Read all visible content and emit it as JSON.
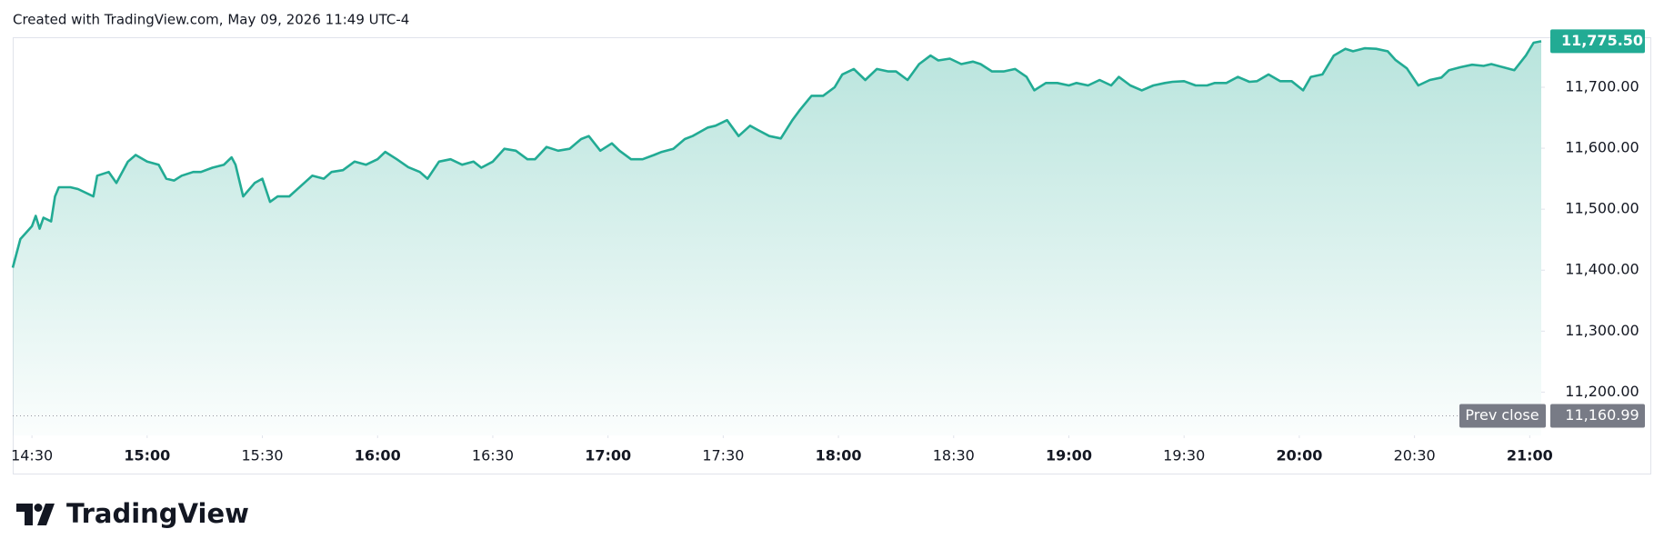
{
  "header": {
    "text": "Created with TradingView.com, May 09, 2026 11:49 UTC-4"
  },
  "brand": {
    "text": "TradingView"
  },
  "chart_data": {
    "type": "area",
    "color": "#22ab94",
    "x": [
      "14:25",
      "14:27",
      "14:30",
      "14:31",
      "14:32",
      "14:33",
      "14:35",
      "14:36",
      "14:37",
      "14:40",
      "14:42",
      "14:46",
      "14:47",
      "14:50",
      "14:52",
      "14:55",
      "14:57",
      "15:00",
      "15:03",
      "15:05",
      "15:07",
      "15:09",
      "15:12",
      "15:14",
      "15:17",
      "15:20",
      "15:22",
      "15:23",
      "15:25",
      "15:28",
      "15:30",
      "15:32",
      "15:34",
      "15:37",
      "15:40",
      "15:43",
      "15:46",
      "15:48",
      "15:51",
      "15:54",
      "15:57",
      "16:00",
      "16:02",
      "16:05",
      "16:08",
      "16:11",
      "16:13",
      "16:16",
      "16:19",
      "16:22",
      "16:25",
      "16:27",
      "16:30",
      "16:33",
      "16:36",
      "16:39",
      "16:41",
      "16:44",
      "16:47",
      "16:50",
      "16:53",
      "16:55",
      "16:58",
      "17:01",
      "17:03",
      "17:06",
      "17:09",
      "17:12",
      "17:14",
      "17:17",
      "17:20",
      "17:22",
      "17:26",
      "17:28",
      "17:31",
      "17:34",
      "17:37",
      "17:39",
      "17:42",
      "17:45",
      "17:48",
      "17:50",
      "17:53",
      "17:56",
      "17:59",
      "18:01",
      "18:04",
      "18:07",
      "18:10",
      "18:13",
      "18:15",
      "18:18",
      "18:21",
      "18:24",
      "18:26",
      "18:29",
      "18:32",
      "18:35",
      "18:37",
      "18:40",
      "18:43",
      "18:46",
      "18:49",
      "18:51",
      "18:54",
      "18:57",
      "19:00",
      "19:02",
      "19:05",
      "19:08",
      "19:11",
      "19:13",
      "19:16",
      "19:19",
      "19:22",
      "19:25",
      "19:27",
      "19:30",
      "19:33",
      "19:36",
      "19:38",
      "19:41",
      "19:44",
      "19:47",
      "19:49",
      "19:52",
      "19:55",
      "19:58",
      "20:01",
      "20:03",
      "20:06",
      "20:09",
      "20:12",
      "20:14",
      "20:17",
      "20:20",
      "20:23",
      "20:25",
      "20:28",
      "20:31",
      "20:34",
      "20:37",
      "20:39",
      "20:42",
      "20:45",
      "20:48",
      "20:50",
      "20:53",
      "20:56",
      "20:59",
      "21:01",
      "21:03"
    ],
    "values": [
      11404,
      11451,
      11472,
      11489,
      11468,
      11486,
      11480,
      11521,
      11536,
      11536,
      11533,
      11521,
      11555,
      11561,
      11543,
      11578,
      11589,
      11578,
      11573,
      11550,
      11547,
      11555,
      11561,
      11561,
      11568,
      11573,
      11585,
      11573,
      11521,
      11543,
      11550,
      11512,
      11521,
      11521,
      11538,
      11555,
      11550,
      11561,
      11564,
      11578,
      11573,
      11582,
      11594,
      11582,
      11569,
      11561,
      11550,
      11578,
      11582,
      11573,
      11578,
      11568,
      11578,
      11599,
      11596,
      11582,
      11582,
      11602,
      11596,
      11599,
      11615,
      11620,
      11596,
      11608,
      11596,
      11582,
      11582,
      11589,
      11594,
      11599,
      11615,
      11620,
      11634,
      11637,
      11646,
      11620,
      11637,
      11630,
      11620,
      11616,
      11646,
      11663,
      11686,
      11686,
      11700,
      11721,
      11730,
      11712,
      11730,
      11726,
      11726,
      11712,
      11738,
      11752,
      11744,
      11747,
      11738,
      11742,
      11738,
      11726,
      11726,
      11730,
      11717,
      11695,
      11707,
      11707,
      11703,
      11707,
      11703,
      11712,
      11703,
      11717,
      11703,
      11695,
      11703,
      11707,
      11709,
      11710,
      11703,
      11703,
      11707,
      11707,
      11717,
      11709,
      11710,
      11721,
      11710,
      11710,
      11695,
      11717,
      11721,
      11752,
      11763,
      11759,
      11764,
      11763,
      11759,
      11745,
      11731,
      11703,
      11712,
      11716,
      11728,
      11733,
      11737,
      11735,
      11738,
      11733,
      11728,
      11752,
      11773,
      11775.5
    ],
    "xlim": [
      "14:25",
      "21:03"
    ],
    "xticks": [
      "14:30",
      "15:00",
      "15:30",
      "16:00",
      "16:30",
      "17:00",
      "17:30",
      "18:00",
      "18:30",
      "19:00",
      "19:30",
      "20:00",
      "20:30",
      "21:00"
    ],
    "ylim": [
      11129,
      11782
    ],
    "yticks": [
      {
        "value": 11200,
        "label": "11,200.00"
      },
      {
        "value": 11300,
        "label": "11,300.00"
      },
      {
        "value": 11400,
        "label": "11,400.00"
      },
      {
        "value": 11500,
        "label": "11,500.00"
      },
      {
        "value": 11600,
        "label": "11,600.00"
      },
      {
        "value": 11700,
        "label": "11,700.00"
      }
    ],
    "last_price": {
      "value": 11775.5,
      "label": "11,775.50"
    },
    "prev_close": {
      "name": "Prev close",
      "value": 11160.99,
      "label": "11,160.99"
    }
  }
}
